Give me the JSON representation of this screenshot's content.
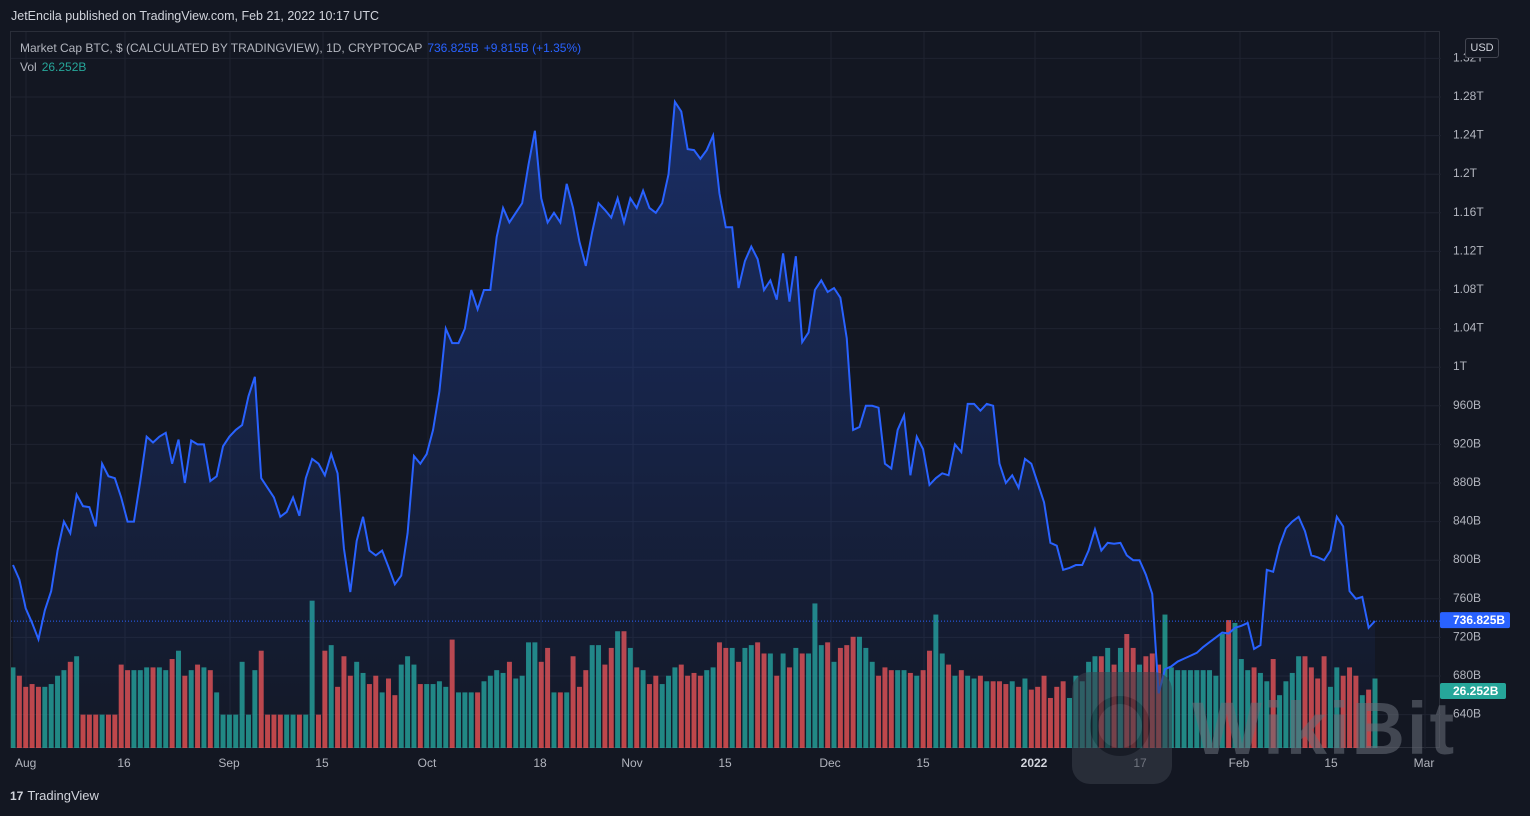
{
  "header": {
    "published": "JetEncila published on TradingView.com, Feb 21, 2022 10:17 UTC"
  },
  "legend": {
    "symbol": "Market Cap BTC, $ (CALCULATED BY TRADINGVIEW), 1D, CRYPTOCAP",
    "last": "736.825B",
    "change": "+9.815B (+1.35%)",
    "vol_label": "Vol",
    "vol_value": "26.252B"
  },
  "scale_badge": "USD",
  "footer": {
    "brand": "TradingView",
    "logo_text": "17"
  },
  "watermark": {
    "text": "WikiBit"
  },
  "colors": {
    "line": "#2962ff",
    "up_volume": "#26a69a",
    "down_volume": "#ef5350",
    "background": "#131722",
    "grid": "#1f2330"
  },
  "chart_data": {
    "type": "area",
    "title": "Market Cap BTC, $ (CALCULATED BY TRADINGVIEW), 1D, CRYPTOCAP",
    "xlabel": "",
    "ylabel": "",
    "x_tick_labels": [
      "Aug",
      "16",
      "Sep",
      "15",
      "Oct",
      "18",
      "Nov",
      "15",
      "Dec",
      "15",
      "2022",
      "17",
      "Feb",
      "15",
      "Mar"
    ],
    "y_tick_labels": [
      "1.32T",
      "1.28T",
      "1.24T",
      "1.2T",
      "1.16T",
      "1.12T",
      "1.08T",
      "1.04T",
      "1T",
      "960B",
      "920B",
      "880B",
      "840B",
      "800B",
      "760B",
      "720B",
      "680B",
      "640B"
    ],
    "ylim_billions": [
      640,
      1320
    ],
    "last_price_label": "736.825B",
    "last_price_billions": 736.825,
    "last_volume_label": "26.252B",
    "series": [
      {
        "type": "line",
        "start_date": "2021-07-31",
        "end_date": "2022-02-21",
        "values_billions": [
          795,
          780,
          750,
          735,
          718,
          748,
          768,
          810,
          840,
          828,
          868,
          856,
          855,
          835,
          900,
          887,
          885,
          865,
          840,
          840,
          882,
          928,
          922,
          928,
          932,
          900,
          925,
          880,
          924,
          920,
          920,
          882,
          887,
          918,
          928,
          935,
          940,
          970,
          990,
          885,
          875,
          865,
          845,
          850,
          865,
          846,
          885,
          905,
          900,
          888,
          910,
          890,
          812,
          767,
          820,
          845,
          810,
          805,
          810,
          793,
          775,
          784,
          828,
          908,
          900,
          910,
          935,
          975,
          1040,
          1025,
          1025,
          1040,
          1080,
          1060,
          1080,
          1080,
          1135,
          1165,
          1150,
          1160,
          1170,
          1210,
          1245,
          1175,
          1150,
          1160,
          1150,
          1190,
          1165,
          1130,
          1105,
          1140,
          1170,
          1163,
          1155,
          1175,
          1150,
          1175,
          1165,
          1183,
          1165,
          1160,
          1170,
          1200,
          1275,
          1265,
          1226,
          1225,
          1216,
          1225,
          1240,
          1180,
          1145,
          1145,
          1082,
          1110,
          1125,
          1112,
          1080,
          1090,
          1070,
          1118,
          1068,
          1115,
          1026,
          1036,
          1080,
          1090,
          1078,
          1082,
          1072,
          1030,
          935,
          938,
          960,
          960,
          958,
          900,
          895,
          935,
          950,
          888,
          928,
          915,
          878,
          885,
          890,
          888,
          920,
          912,
          962,
          962,
          955,
          962,
          960,
          900,
          880,
          888,
          875,
          905,
          900,
          880,
          860,
          818,
          815,
          790,
          792,
          795,
          795,
          810,
          832,
          810,
          818,
          817,
          818,
          805,
          800,
          800,
          785,
          765,
          662,
          687,
          690,
          695,
          698,
          701,
          704,
          710,
          715,
          720,
          725,
          724,
          730,
          732,
          735,
          708,
          712,
          790,
          788,
          815,
          833,
          840,
          845,
          830,
          805,
          803,
          800,
          810,
          845,
          835,
          768,
          760,
          762,
          730,
          737
        ]
      },
      {
        "type": "bar",
        "name": "Vol",
        "values_billions": [
          29,
          26,
          22,
          23,
          22,
          22,
          23,
          26,
          28,
          31,
          33,
          12,
          12,
          12,
          12,
          12,
          12,
          30,
          28,
          28,
          28,
          29,
          29,
          29,
          28,
          32,
          35,
          26,
          28,
          30,
          29,
          28,
          20,
          12,
          12,
          12,
          31,
          12,
          28,
          35,
          12,
          12,
          12,
          12,
          12,
          12,
          12,
          53,
          12,
          35,
          37,
          22,
          33,
          26,
          31,
          27,
          23,
          26,
          20,
          25,
          19,
          30,
          33,
          30,
          23,
          23,
          23,
          24,
          22,
          39,
          20,
          20,
          20,
          20,
          24,
          26,
          28,
          27,
          31,
          25,
          26,
          38,
          38,
          31,
          36,
          20,
          20,
          20,
          33,
          22,
          28,
          37,
          37,
          30,
          36,
          42,
          42,
          36,
          29,
          28,
          23,
          26,
          23,
          26,
          29,
          30,
          26,
          27,
          26,
          28,
          29,
          38,
          36,
          36,
          31,
          36,
          37,
          38,
          34,
          34,
          26,
          34,
          29,
          36,
          34,
          34,
          52,
          37,
          38,
          31,
          36,
          37,
          40,
          40,
          36,
          31,
          26,
          29,
          28,
          28,
          28,
          27,
          26,
          28,
          35,
          48,
          34,
          30,
          26,
          28,
          26,
          25,
          26,
          24,
          24,
          24,
          23,
          24,
          22,
          25,
          21,
          22,
          26,
          18,
          22,
          24,
          18,
          26,
          24,
          31,
          33,
          33,
          36,
          30,
          36,
          41,
          36,
          30,
          33,
          34,
          30,
          48,
          29,
          28,
          28,
          28,
          28,
          28,
          28,
          26,
          41,
          46,
          45,
          32,
          28,
          29,
          27,
          24,
          32,
          19,
          24,
          27,
          33,
          33,
          29,
          25,
          33,
          22,
          29,
          26,
          29,
          26,
          19,
          21,
          25,
          32,
          30,
          28,
          36,
          32,
          42,
          42,
          42,
          42,
          42,
          26,
          26
        ]
      }
    ]
  }
}
